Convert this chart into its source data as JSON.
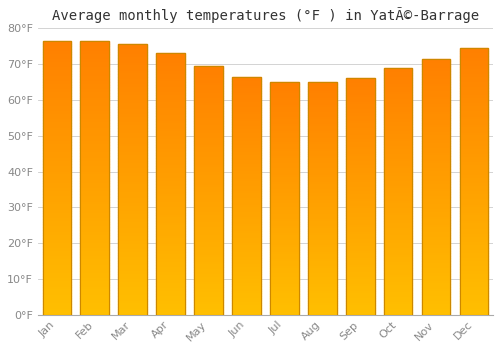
{
  "title": "Average monthly temperatures (°F ) in YatÃ©-Barrage",
  "months": [
    "Jan",
    "Feb",
    "Mar",
    "Apr",
    "May",
    "Jun",
    "Jul",
    "Aug",
    "Sep",
    "Oct",
    "Nov",
    "Dec"
  ],
  "values": [
    76.5,
    76.5,
    75.5,
    73.0,
    69.5,
    66.5,
    65.0,
    65.0,
    66.0,
    69.0,
    71.5,
    74.5
  ],
  "bar_color_top": "#FFA500",
  "bar_color_bottom": "#FFD000",
  "bar_edge_color": "#CC8800",
  "ylim": [
    0,
    80
  ],
  "yticks": [
    0,
    10,
    20,
    30,
    40,
    50,
    60,
    70,
    80
  ],
  "ylabel_suffix": "°F",
  "background_color": "#FFFFFF",
  "grid_color": "#CCCCCC",
  "title_fontsize": 10,
  "tick_fontsize": 8,
  "tick_color": "#888888"
}
